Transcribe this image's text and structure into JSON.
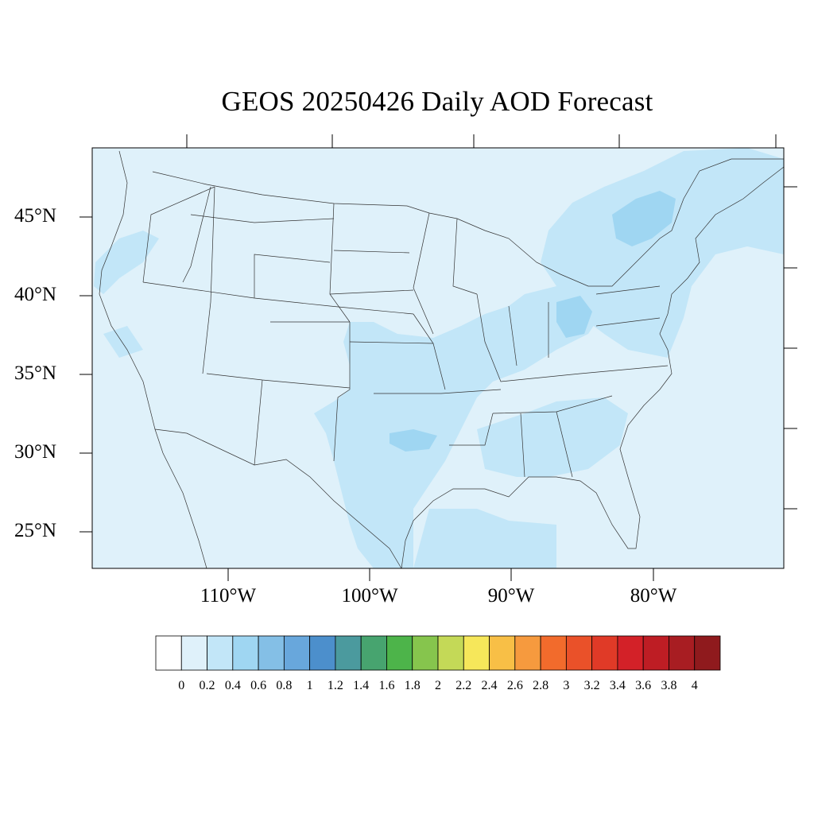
{
  "title": "GEOS 20250426 Daily AOD Forecast",
  "map": {
    "lat_labels": [
      "45°N",
      "40°N",
      "35°N",
      "30°N",
      "25°N"
    ],
    "lon_labels": [
      "110°W",
      "100°W",
      "90°W",
      "80°W"
    ],
    "background_aod": "0.2-0.4",
    "colors": {
      "ocean_land_base": "#dff1fa",
      "aod_0_4": "#c2e6f8",
      "aod_0_6": "#9fd6f2",
      "border": "#333333"
    }
  },
  "colorbar": {
    "labels": [
      "0",
      "0.2",
      "0.4",
      "0.6",
      "0.8",
      "1",
      "1.2",
      "1.4",
      "1.6",
      "1.8",
      "2",
      "2.2",
      "2.4",
      "2.6",
      "2.8",
      "3",
      "3.2",
      "3.4",
      "3.6",
      "3.8",
      "4"
    ],
    "colors": [
      "#ffffff",
      "#dff1fa",
      "#c2e6f8",
      "#9fd6f2",
      "#84bfe6",
      "#68a7dc",
      "#4c8fcc",
      "#4b9a9e",
      "#47a46f",
      "#4db44a",
      "#86c54d",
      "#c4d957",
      "#f6e75a",
      "#f8bf46",
      "#f69a3e",
      "#f26b2c",
      "#ea5129",
      "#e03a27",
      "#d32128",
      "#be1d24",
      "#a81d22",
      "#8f1a1d"
    ]
  }
}
